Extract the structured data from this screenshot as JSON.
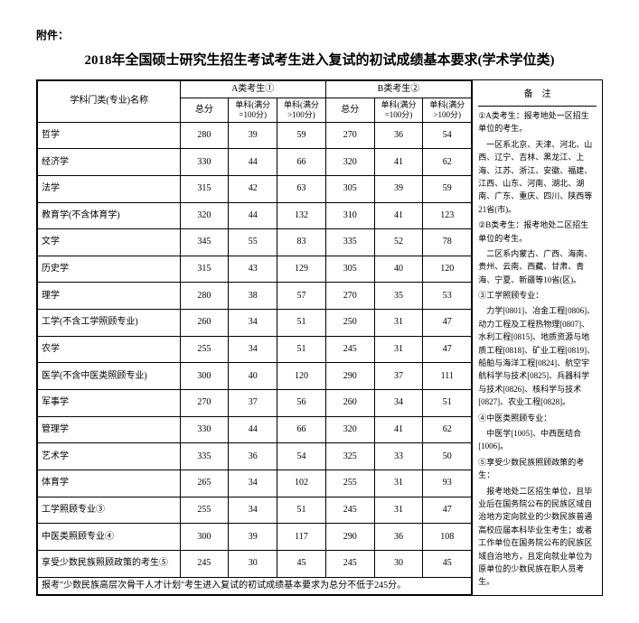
{
  "attachment_label": "附件：",
  "title": "2018年全国硕士研究生招生考试考生进入复试的初试成绩基本要求(学术学位类)",
  "headers": {
    "subject": "学科门类(专业)名称",
    "groupA": "A类考生①",
    "groupB": "B类考生②",
    "notes": "备　注",
    "total": "总分",
    "single100": "单科(满分=100分)",
    "singleOver100": "单科(满分>100分)"
  },
  "rows": [
    {
      "subject": "哲学",
      "a_total": "280",
      "a_s100": "39",
      "a_o100": "59",
      "b_total": "270",
      "b_s100": "36",
      "b_o100": "54"
    },
    {
      "subject": "经济学",
      "a_total": "330",
      "a_s100": "44",
      "a_o100": "66",
      "b_total": "320",
      "b_s100": "41",
      "b_o100": "62"
    },
    {
      "subject": "法学",
      "a_total": "315",
      "a_s100": "42",
      "a_o100": "63",
      "b_total": "305",
      "b_s100": "39",
      "b_o100": "59"
    },
    {
      "subject": "教育学(不含体育学)",
      "a_total": "320",
      "a_s100": "44",
      "a_o100": "132",
      "b_total": "310",
      "b_s100": "41",
      "b_o100": "123"
    },
    {
      "subject": "文学",
      "a_total": "345",
      "a_s100": "55",
      "a_o100": "83",
      "b_total": "335",
      "b_s100": "52",
      "b_o100": "78"
    },
    {
      "subject": "历史学",
      "a_total": "315",
      "a_s100": "43",
      "a_o100": "129",
      "b_total": "305",
      "b_s100": "40",
      "b_o100": "120"
    },
    {
      "subject": "理学",
      "a_total": "280",
      "a_s100": "38",
      "a_o100": "57",
      "b_total": "270",
      "b_s100": "35",
      "b_o100": "53"
    },
    {
      "subject": "工学(不含工学照顾专业)",
      "a_total": "260",
      "a_s100": "34",
      "a_o100": "51",
      "b_total": "250",
      "b_s100": "31",
      "b_o100": "47"
    },
    {
      "subject": "农学",
      "a_total": "255",
      "a_s100": "34",
      "a_o100": "51",
      "b_total": "245",
      "b_s100": "31",
      "b_o100": "47"
    },
    {
      "subject": "医学(不含中医类照顾专业)",
      "a_total": "300",
      "a_s100": "40",
      "a_o100": "120",
      "b_total": "290",
      "b_s100": "37",
      "b_o100": "111"
    },
    {
      "subject": "军事学",
      "a_total": "270",
      "a_s100": "37",
      "a_o100": "56",
      "b_total": "260",
      "b_s100": "34",
      "b_o100": "51"
    },
    {
      "subject": "管理学",
      "a_total": "330",
      "a_s100": "44",
      "a_o100": "66",
      "b_total": "320",
      "b_s100": "41",
      "b_o100": "62"
    },
    {
      "subject": "艺术学",
      "a_total": "335",
      "a_s100": "36",
      "a_o100": "54",
      "b_total": "325",
      "b_s100": "33",
      "b_o100": "50"
    },
    {
      "subject": "体育学",
      "a_total": "265",
      "a_s100": "34",
      "a_o100": "102",
      "b_total": "255",
      "b_s100": "31",
      "b_o100": "93"
    },
    {
      "subject": "工学照顾专业③",
      "a_total": "255",
      "a_s100": "34",
      "a_o100": "51",
      "b_total": "245",
      "b_s100": "31",
      "b_o100": "47"
    },
    {
      "subject": "中医类照顾专业④",
      "a_total": "300",
      "a_s100": "39",
      "a_o100": "117",
      "b_total": "290",
      "b_s100": "36",
      "b_o100": "108"
    },
    {
      "subject": "享受少数民族照顾政策的考生⑤",
      "a_total": "245",
      "a_s100": "30",
      "a_o100": "45",
      "b_total": "245",
      "b_s100": "30",
      "b_o100": "45"
    }
  ],
  "footnote": "报考\"少数民族高层次骨干人才计划\"考生进入复试的初试成绩基本要求为总分不低于245分。",
  "notes": {
    "n1_title": "①A类考生：报考地处一区招生单位的考生。",
    "n1_body": "一区系北京、天津、河北、山西、辽宁、吉林、黑龙江、上海、江苏、浙江、安徽、福建、江西、山东、河南、湖北、湖南、广东、重庆、四川、陕西等21省(市)。",
    "n2_title": "②B类考生：报考地处二区招生单位的考生。",
    "n2_body": "二区系内蒙古、广西、海南、贵州、云南、西藏、甘肃、青海、宁夏、新疆等10省(区)。",
    "n3_title": "③工学照顾专业：",
    "n3_body": "力学[0801]、冶金工程[0806]、动力工程及工程热物理[0807]、水利工程[0815]、地质资源与地质工程[0818]、矿业工程[0819]、船舶与海洋工程[0824]、航空宇航科学与技术[0825]、兵器科学与技术[0826]、核科学与技术[0827]、农业工程[0828]。",
    "n4_title": "④中医类照顾专业：",
    "n4_body": "中医学[1005]、中西医结合[1006]。",
    "n5_title": "⑤享受少数民族照顾政策的考生：",
    "n5_body": "报考地处二区招生单位，且毕业后在国务院公布的民族区域自治地方定向就业的少数民族普通高校应届本科毕业生考生；或者工作单位在国务院公布的民族区域自治地方，且定向就业单位为原单位的少数民族在职人员考生。"
  }
}
